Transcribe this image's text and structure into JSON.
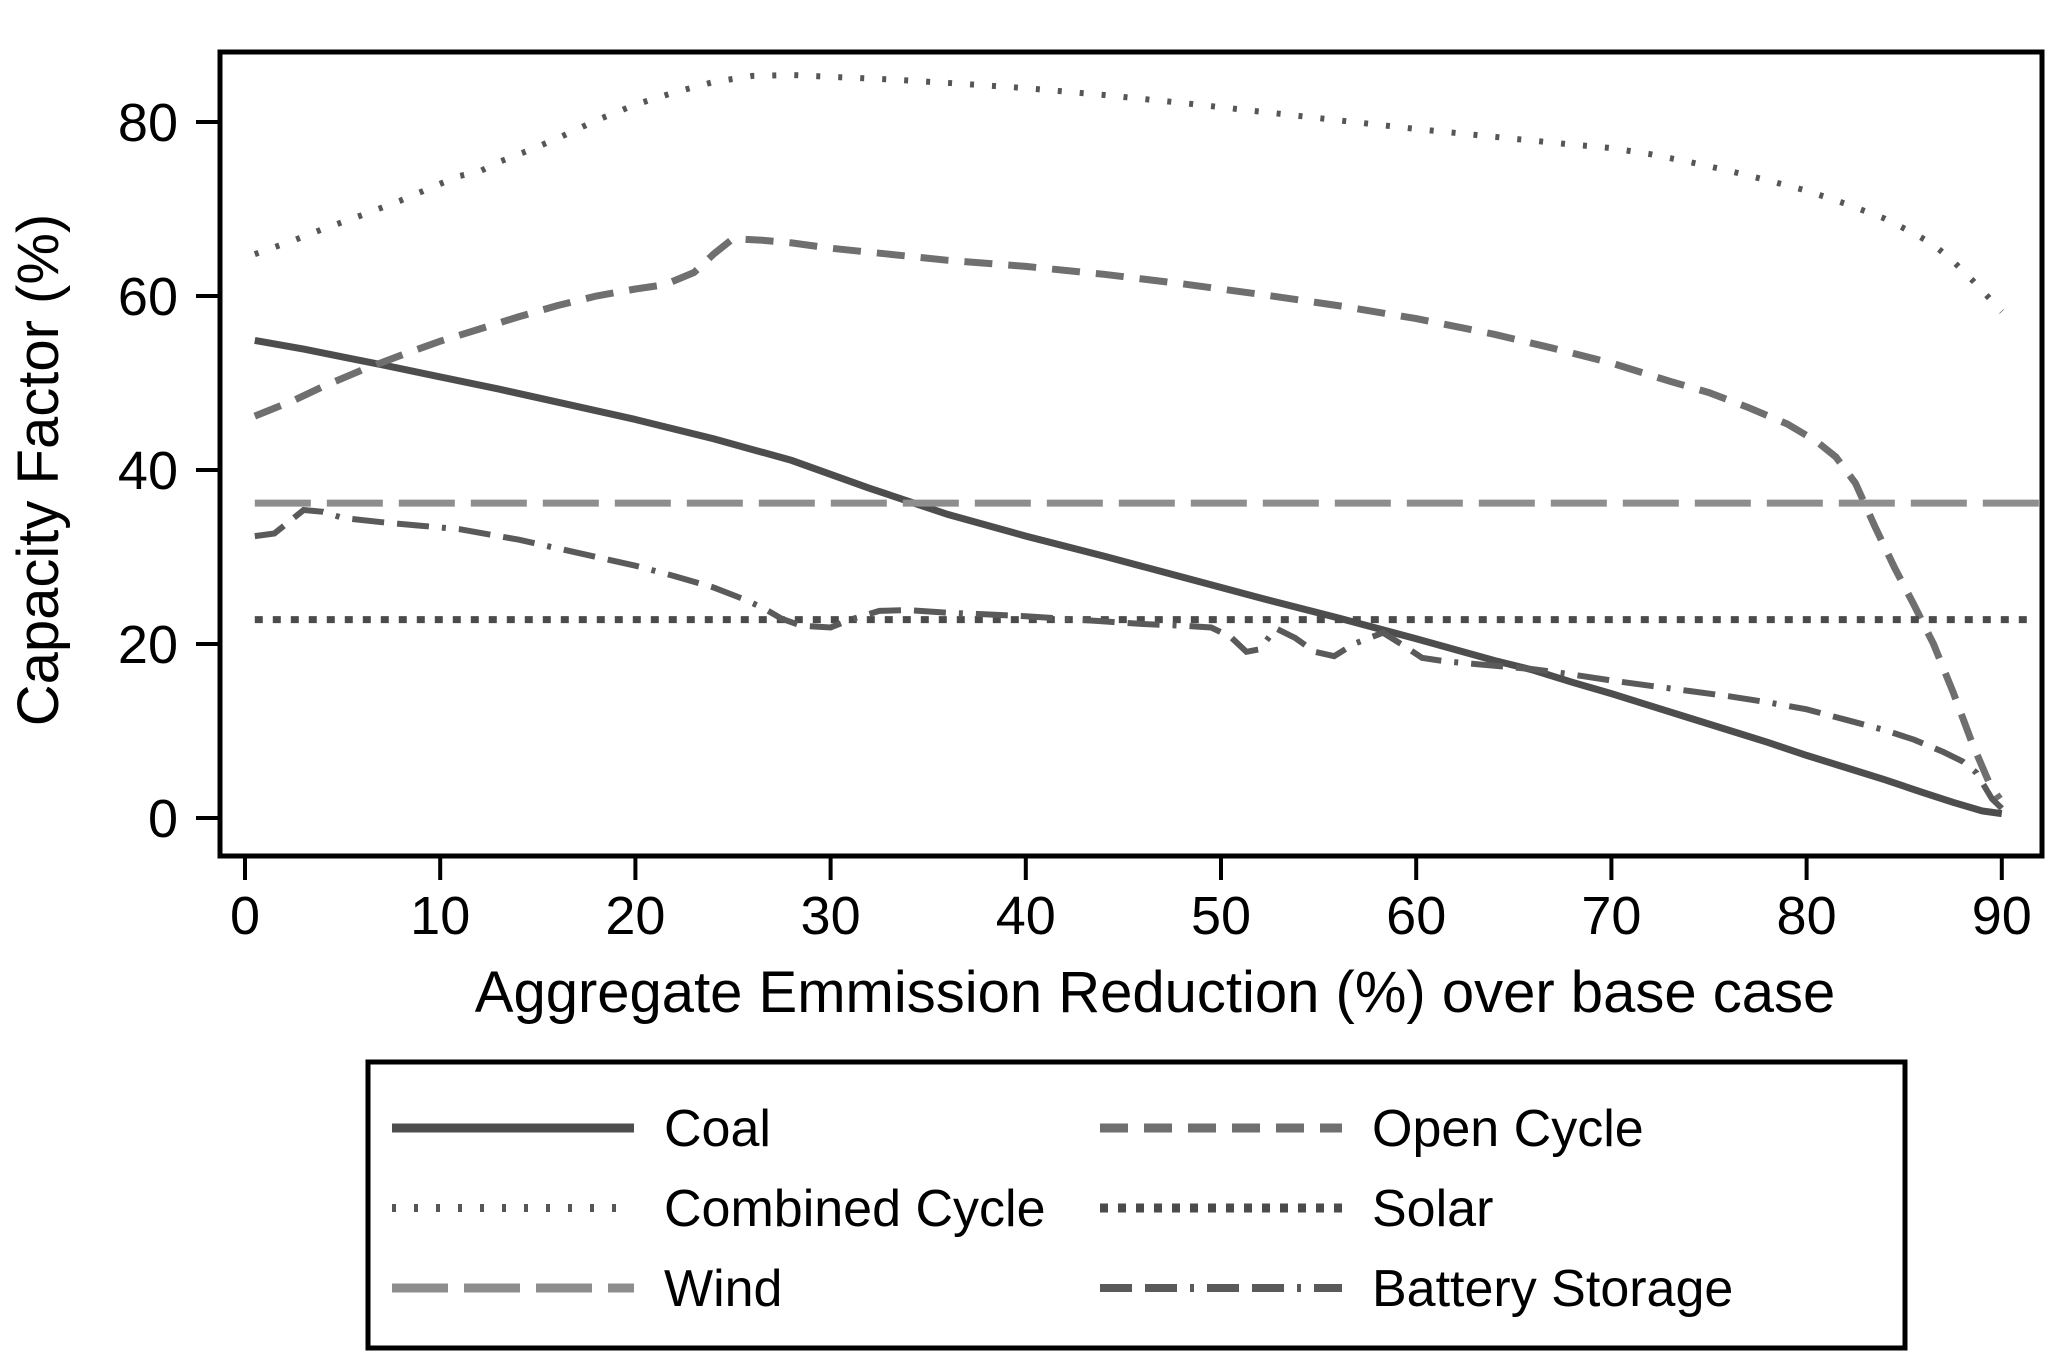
{
  "figure": {
    "background": "#ffffff",
    "axis_color": "#000000",
    "legend": {
      "border_color": "#000000",
      "entries": [
        "Coal",
        "Open Cycle",
        "Combined Cycle",
        "Solar",
        "Wind",
        "Battery Storage"
      ]
    }
  },
  "chart_data": {
    "type": "line",
    "title": "",
    "xlabel": "Aggregate Emmission Reduction (%) over base case",
    "ylabel": "Capacity Factor (%)",
    "x_ticks": [
      0,
      10,
      20,
      30,
      40,
      50,
      60,
      70,
      80,
      90
    ],
    "y_ticks": [
      0,
      20,
      40,
      60,
      80
    ],
    "xlim": [
      -1.3,
      92.2
    ],
    "ylim": [
      -4.4,
      88.0
    ],
    "grid": false,
    "legend_position": "bottom",
    "series": [
      {
        "name": "Coal",
        "color": "#4d4d4d",
        "dash": "solid",
        "width": 7,
        "points": [
          [
            0.5,
            54.9
          ],
          [
            3,
            53.9
          ],
          [
            5,
            53.0
          ],
          [
            7,
            52.1
          ],
          [
            10,
            50.7
          ],
          [
            13,
            49.3
          ],
          [
            16,
            47.8
          ],
          [
            20,
            45.8
          ],
          [
            24,
            43.6
          ],
          [
            28,
            41.1
          ],
          [
            32,
            37.9
          ],
          [
            36,
            34.9
          ],
          [
            40,
            32.4
          ],
          [
            44,
            30.1
          ],
          [
            48,
            27.7
          ],
          [
            52,
            25.3
          ],
          [
            56,
            23.0
          ],
          [
            60,
            20.6
          ],
          [
            64,
            18.1
          ],
          [
            66,
            17.0
          ],
          [
            68,
            15.6
          ],
          [
            70,
            14.3
          ],
          [
            72,
            12.9
          ],
          [
            74,
            11.5
          ],
          [
            76,
            10.1
          ],
          [
            78,
            8.7
          ],
          [
            80,
            7.2
          ],
          [
            82,
            5.8
          ],
          [
            84,
            4.4
          ],
          [
            86,
            2.9
          ],
          [
            87.5,
            1.8
          ],
          [
            89,
            0.8
          ],
          [
            90,
            0.5
          ]
        ]
      },
      {
        "name": "Open Cycle",
        "color": "#6f6f6f",
        "dash": "dash",
        "width": 7,
        "points": [
          [
            0.5,
            46.2
          ],
          [
            2.5,
            48.0
          ],
          [
            4,
            49.6
          ],
          [
            6,
            51.5
          ],
          [
            8,
            53.2
          ],
          [
            10,
            54.8
          ],
          [
            12,
            56.2
          ],
          [
            14,
            57.6
          ],
          [
            16,
            58.9
          ],
          [
            18,
            60.0
          ],
          [
            20,
            60.8
          ],
          [
            21.5,
            61.3
          ],
          [
            23,
            62.7
          ],
          [
            24,
            64.8
          ],
          [
            25,
            66.6
          ],
          [
            26.5,
            66.4
          ],
          [
            28,
            66.1
          ],
          [
            30,
            65.5
          ],
          [
            33,
            64.8
          ],
          [
            36,
            64.1
          ],
          [
            40,
            63.4
          ],
          [
            44,
            62.5
          ],
          [
            48,
            61.4
          ],
          [
            52,
            60.2
          ],
          [
            56,
            58.9
          ],
          [
            60,
            57.4
          ],
          [
            64,
            55.6
          ],
          [
            67,
            54.0
          ],
          [
            70,
            52.3
          ],
          [
            73,
            50.2
          ],
          [
            75,
            48.9
          ],
          [
            77,
            47.2
          ],
          [
            79,
            45.3
          ],
          [
            80.5,
            43.3
          ],
          [
            81.5,
            41.5
          ],
          [
            82.5,
            38.5
          ],
          [
            83.5,
            33.5
          ],
          [
            84.5,
            28.8
          ],
          [
            85.5,
            24.5
          ],
          [
            86.5,
            20.0
          ],
          [
            87.5,
            14.5
          ],
          [
            88.5,
            8.5
          ],
          [
            89.4,
            3.8
          ],
          [
            89.9,
            2.2
          ]
        ]
      },
      {
        "name": "Combined Cycle",
        "color": "#565656",
        "dash": "fine-dot",
        "width": 6,
        "points": [
          [
            0.5,
            64.8
          ],
          [
            2.5,
            66.4
          ],
          [
            4,
            67.7
          ],
          [
            6,
            69.3
          ],
          [
            8,
            71.0
          ],
          [
            10,
            72.9
          ],
          [
            11,
            73.8
          ],
          [
            12,
            74.3
          ],
          [
            13,
            75.4
          ],
          [
            14.5,
            76.7
          ],
          [
            16,
            78.1
          ],
          [
            18,
            80.2
          ],
          [
            20,
            82.0
          ],
          [
            22,
            83.4
          ],
          [
            24,
            84.6
          ],
          [
            26,
            85.3
          ],
          [
            28,
            85.4
          ],
          [
            30,
            85.2
          ],
          [
            33,
            84.9
          ],
          [
            36,
            84.5
          ],
          [
            40,
            83.9
          ],
          [
            44,
            83.1
          ],
          [
            48,
            82.2
          ],
          [
            52,
            81.2
          ],
          [
            56,
            80.2
          ],
          [
            60,
            79.2
          ],
          [
            64,
            78.3
          ],
          [
            68,
            77.4
          ],
          [
            70,
            77.0
          ],
          [
            72,
            76.3
          ],
          [
            74,
            75.4
          ],
          [
            76,
            74.4
          ],
          [
            78,
            73.3
          ],
          [
            80,
            72.1
          ],
          [
            82,
            70.6
          ],
          [
            84,
            68.9
          ],
          [
            85.5,
            67.2
          ],
          [
            86.5,
            65.9
          ],
          [
            87.5,
            64.0
          ],
          [
            88.5,
            61.8
          ],
          [
            89.3,
            59.9
          ],
          [
            90,
            58.2
          ]
        ]
      },
      {
        "name": "Solar",
        "color": "#4b4b4b",
        "dash": "dot",
        "width": 7,
        "points": [
          [
            0.5,
            22.8
          ],
          [
            91.5,
            22.8
          ]
        ]
      },
      {
        "name": "Wind",
        "color": "#8e8e8e",
        "dash": "longdash",
        "width": 7,
        "points": [
          [
            0.5,
            36.2
          ],
          [
            92,
            36.2
          ]
        ]
      },
      {
        "name": "Battery Storage",
        "color": "#5a5a5a",
        "dash": "longdash-dot",
        "width": 6,
        "points": [
          [
            0.5,
            32.4
          ],
          [
            1.5,
            32.7
          ],
          [
            3,
            35.4
          ],
          [
            4,
            35.2
          ],
          [
            5,
            34.5
          ],
          [
            7,
            34.0
          ],
          [
            9,
            33.6
          ],
          [
            11,
            33.2
          ],
          [
            12.5,
            32.6
          ],
          [
            14,
            32.0
          ],
          [
            16,
            31.0
          ],
          [
            18,
            30.0
          ],
          [
            20,
            29.0
          ],
          [
            22,
            27.8
          ],
          [
            24,
            26.5
          ],
          [
            25.5,
            25.2
          ],
          [
            26.5,
            24.2
          ],
          [
            27.5,
            22.9
          ],
          [
            28.5,
            22.1
          ],
          [
            30,
            21.9
          ],
          [
            31,
            22.8
          ],
          [
            32.5,
            23.8
          ],
          [
            34,
            23.9
          ],
          [
            36,
            23.6
          ],
          [
            38,
            23.4
          ],
          [
            40,
            23.2
          ],
          [
            42,
            22.9
          ],
          [
            44,
            22.6
          ],
          [
            46,
            22.3
          ],
          [
            48,
            22.1
          ],
          [
            49.5,
            21.9
          ],
          [
            50.5,
            20.8
          ],
          [
            51.3,
            19.1
          ],
          [
            52,
            19.4
          ],
          [
            52.8,
            21.8
          ],
          [
            53.8,
            20.7
          ],
          [
            54.8,
            19.1
          ],
          [
            55.8,
            18.6
          ],
          [
            56.8,
            20.0
          ],
          [
            58.3,
            21.3
          ],
          [
            59.3,
            19.9
          ],
          [
            60.3,
            18.4
          ],
          [
            61.5,
            18.0
          ],
          [
            63,
            17.7
          ],
          [
            64.5,
            17.4
          ],
          [
            66,
            17.1
          ],
          [
            68,
            16.5
          ],
          [
            70,
            15.8
          ],
          [
            72,
            15.2
          ],
          [
            74,
            14.6
          ],
          [
            76,
            14.0
          ],
          [
            78,
            13.3
          ],
          [
            80,
            12.5
          ],
          [
            82,
            11.3
          ],
          [
            84,
            10.1
          ],
          [
            85.5,
            9.0
          ],
          [
            87,
            7.6
          ],
          [
            88,
            6.5
          ],
          [
            88.7,
            5.2
          ],
          [
            89.5,
            2.2
          ],
          [
            90,
            1.1
          ]
        ]
      }
    ]
  }
}
